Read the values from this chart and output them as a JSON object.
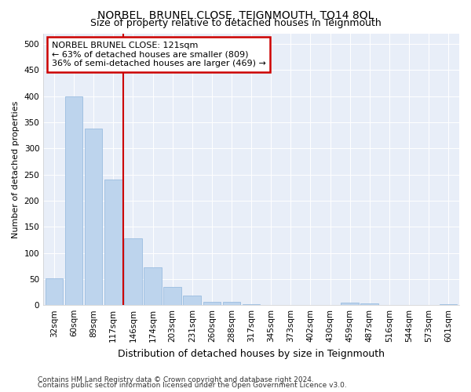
{
  "title": "NORBEL, BRUNEL CLOSE, TEIGNMOUTH, TQ14 8QL",
  "subtitle": "Size of property relative to detached houses in Teignmouth",
  "xlabel": "Distribution of detached houses by size in Teignmouth",
  "ylabel": "Number of detached properties",
  "footnote1": "Contains HM Land Registry data © Crown copyright and database right 2024.",
  "footnote2": "Contains public sector information licensed under the Open Government Licence v3.0.",
  "annotation_title": "NORBEL BRUNEL CLOSE: 121sqm",
  "annotation_line1": "← 63% of detached houses are smaller (809)",
  "annotation_line2": "36% of semi-detached houses are larger (469) →",
  "bar_labels": [
    "32sqm",
    "60sqm",
    "89sqm",
    "117sqm",
    "146sqm",
    "174sqm",
    "203sqm",
    "231sqm",
    "260sqm",
    "288sqm",
    "317sqm",
    "345sqm",
    "373sqm",
    "402sqm",
    "430sqm",
    "459sqm",
    "487sqm",
    "516sqm",
    "544sqm",
    "573sqm",
    "601sqm"
  ],
  "bar_values": [
    52,
    400,
    338,
    240,
    128,
    72,
    35,
    18,
    7,
    6,
    2,
    1,
    1,
    1,
    0,
    5,
    4,
    1,
    0,
    0,
    2
  ],
  "bar_color": "#bdd4ed",
  "bar_edge_color": "#9bbde0",
  "vline_x_index": 3.5,
  "vline_color": "#cc0000",
  "annotation_box_edge_color": "#cc0000",
  "background_color": "#e8eef8",
  "grid_color": "#ffffff",
  "ylim": [
    0,
    520
  ],
  "yticks": [
    0,
    50,
    100,
    150,
    200,
    250,
    300,
    350,
    400,
    450,
    500
  ],
  "title_fontsize": 10,
  "subtitle_fontsize": 9,
  "xlabel_fontsize": 9,
  "ylabel_fontsize": 8,
  "tick_fontsize": 7.5,
  "annotation_fontsize": 8,
  "footnote_fontsize": 6.5
}
